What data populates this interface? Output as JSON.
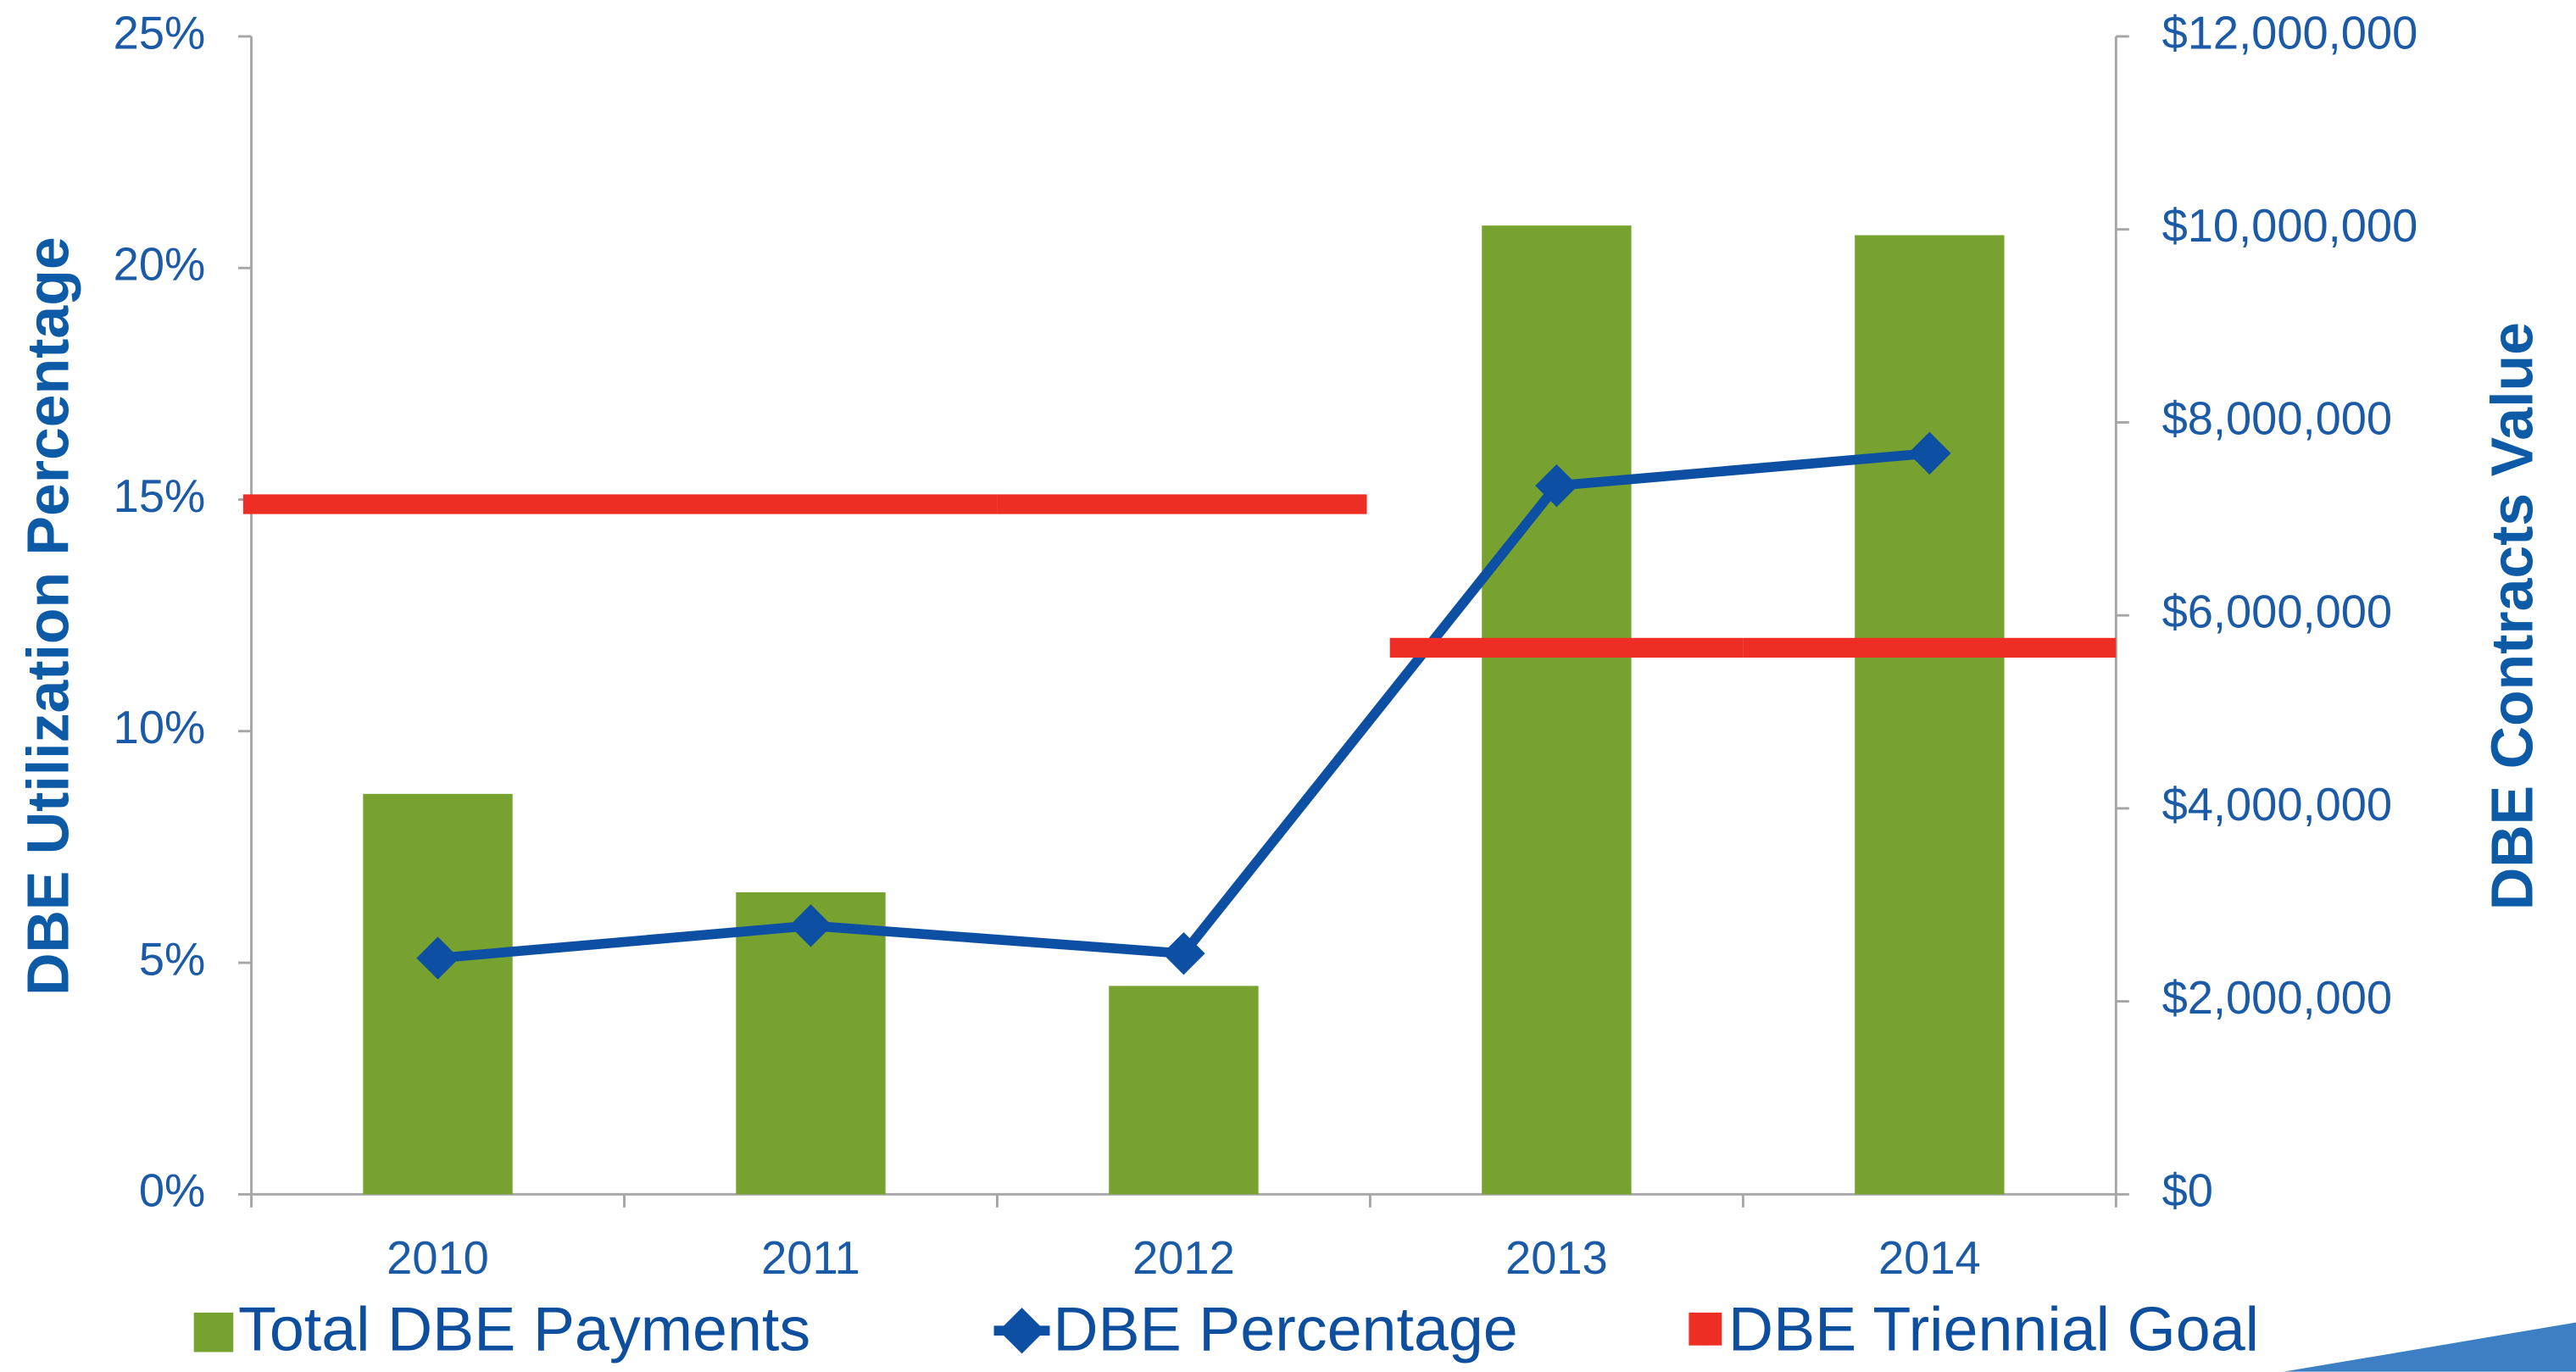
{
  "chart_data": {
    "type": "bar_line",
    "y_label": "DBE Utilization Percentage",
    "y2_label": "DBE Contracts Value",
    "categories": [
      "2010",
      "2011",
      "2012",
      "2013",
      "2014"
    ],
    "series": [
      {
        "name": "Total DBE Payments",
        "type": "bar",
        "axis": "y2",
        "color": "#78a22f",
        "values": [
          4150000,
          3130000,
          2160000,
          10040000,
          9940000
        ]
      },
      {
        "name": "DBE Percentage",
        "type": "line",
        "axis": "y",
        "color": "#0d4fa3",
        "values": [
          5.1,
          5.8,
          5.2,
          15.3,
          16.0
        ]
      },
      {
        "name": "DBE Triennial Goal",
        "type": "step",
        "axis": "y",
        "color": "#ee2e24",
        "values": [
          14.9,
          14.9,
          14.9,
          11.8,
          11.8
        ]
      }
    ],
    "ylim": [
      0,
      25
    ],
    "yticks": [
      {
        "value": 0,
        "label": "0%"
      },
      {
        "value": 5,
        "label": "5%"
      },
      {
        "value": 10,
        "label": "10%"
      },
      {
        "value": 15,
        "label": "15%"
      },
      {
        "value": 20,
        "label": "20%"
      },
      {
        "value": 25,
        "label": "25%"
      }
    ],
    "y2lim": [
      0,
      12000000
    ],
    "y2ticks": [
      {
        "value": 0,
        "label": "$0"
      },
      {
        "value": 2000000,
        "label": "$2,000,000"
      },
      {
        "value": 4000000,
        "label": "$4,000,000"
      },
      {
        "value": 6000000,
        "label": "$6,000,000"
      },
      {
        "value": 8000000,
        "label": "$8,000,000"
      },
      {
        "value": 10000000,
        "label": "$10,000,000"
      },
      {
        "value": 12000000,
        "label": "$12,000,000"
      }
    ],
    "grid": false,
    "legend": "bottom"
  }
}
